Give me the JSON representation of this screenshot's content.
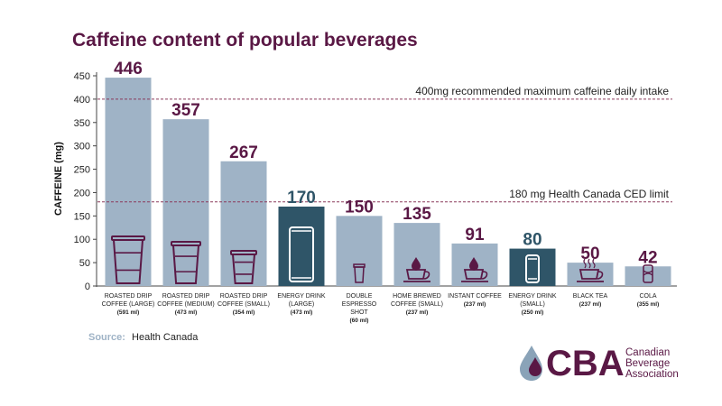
{
  "colors": {
    "title": "#5a1845",
    "bar_light": "#9fb3c6",
    "bar_dark": "#2f5568",
    "label_plum": "#5a1845",
    "label_teal": "#2f5568",
    "reference_line": "#8b3a5b",
    "source_label": "#9fb3c6",
    "logo_plum": "#5a1845",
    "logo_blue": "#8aa3b8"
  },
  "chart_data": {
    "type": "bar",
    "title": "Caffeine content of popular beverages",
    "ylabel": "CAFFEINE (mg)",
    "ylim": [
      0,
      450
    ],
    "yticks": [
      0,
      50,
      100,
      150,
      200,
      250,
      300,
      350,
      400,
      450
    ],
    "grid": false,
    "categories": [
      {
        "lines": [
          "ROASTED DRIP",
          "COFFEE (LARGE)"
        ],
        "volume": "(591 ml)"
      },
      {
        "lines": [
          "ROASTED DRIP",
          "COFFEE (MEDIUM)"
        ],
        "volume": "(473 ml)"
      },
      {
        "lines": [
          "ROASTED DRIP",
          "COFFEE (SMALL)"
        ],
        "volume": "(354 ml)"
      },
      {
        "lines": [
          "ENERGY DRINK",
          "(LARGE)"
        ],
        "volume": "(473 ml)"
      },
      {
        "lines": [
          "DOUBLE",
          "ESPRESSO",
          "SHOT"
        ],
        "volume": "(60 ml)"
      },
      {
        "lines": [
          "HOME BREWED",
          "COFFEE (SMALL)"
        ],
        "volume": "(237 ml)"
      },
      {
        "lines": [
          "INSTANT COFFEE"
        ],
        "volume": "(237 ml)"
      },
      {
        "lines": [
          "ENERGY DRINK",
          "(SMALL)"
        ],
        "volume": "(250 ml)"
      },
      {
        "lines": [
          "BLACK TEA"
        ],
        "volume": "(237 ml)"
      },
      {
        "lines": [
          "COLA"
        ],
        "volume": "(355 ml)"
      }
    ],
    "values": [
      446,
      357,
      267,
      170,
      150,
      135,
      91,
      80,
      50,
      42
    ],
    "value_labels": [
      "446",
      "357",
      "267",
      "170",
      "150",
      "135",
      "91",
      "80",
      "50",
      "42"
    ],
    "bar_colors": [
      "light",
      "light",
      "light",
      "dark",
      "light",
      "light",
      "light",
      "dark",
      "light",
      "light"
    ],
    "icons": [
      "coffee-cup-large-icon",
      "coffee-cup-medium-icon",
      "coffee-cup-small-icon",
      "energy-can-large-icon",
      "espresso-cup-icon",
      "mug-with-drop-icon",
      "mug-with-drop-icon",
      "energy-can-small-icon",
      "tea-mug-icon",
      "soda-can-icon"
    ],
    "reference_lines": [
      {
        "value": 400,
        "label": "400mg recommended maximum caffeine daily intake"
      },
      {
        "value": 180,
        "label": "180 mg Health Canada CED limit"
      }
    ]
  },
  "source": {
    "label": "Source:",
    "text": "Health Canada"
  },
  "logo": {
    "acronym": "CBA",
    "lines": [
      "Canadian",
      "Beverage",
      "Association"
    ]
  }
}
